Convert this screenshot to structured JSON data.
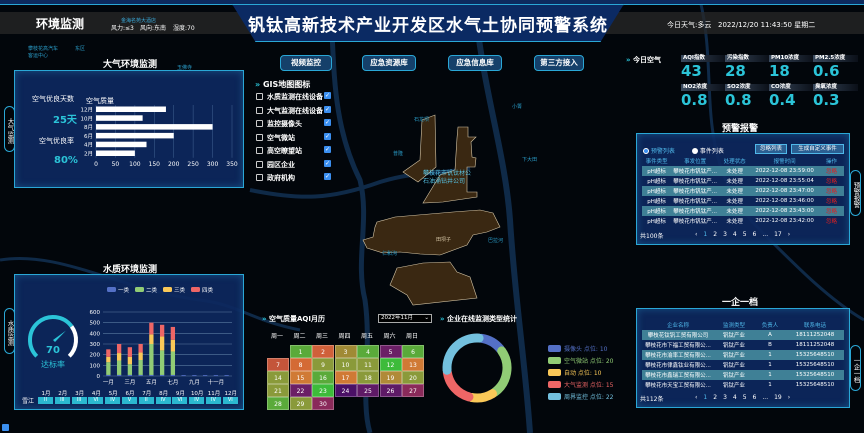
{
  "header": {
    "section": "环境监测",
    "wind_force": "风力:≤3",
    "wind_dir": "风向:东南",
    "humidity": "湿度:70",
    "title": "钒钛高新技术产业开发区水气土协同预警系统",
    "weather": "今日天气:多云",
    "datetime": "2022/12/20 11:43:50 星期二"
  },
  "side_tabs": {
    "air": "大气监测",
    "water": "水质监测",
    "alarm": "预警报警",
    "enterprise": "一企一档"
  },
  "air_panel": {
    "title": "大气环境监测",
    "good_days_label": "空气优良天数",
    "good_days": "25天",
    "good_rate_label": "空气优良率",
    "good_rate": "80%",
    "chart_data": {
      "type": "bar",
      "orientation": "horizontal",
      "title": "空气质量",
      "categories": [
        "12月",
        "10月",
        "8月",
        "6月",
        "4月",
        "2月"
      ],
      "values": [
        180,
        120,
        300,
        200,
        130,
        100
      ],
      "xlim": [
        0,
        350
      ],
      "xticks": [
        0,
        50,
        100,
        150,
        200,
        250,
        300,
        350
      ],
      "bar_color": "#ffffff"
    }
  },
  "water_panel": {
    "title": "水质环境监测",
    "gauge": {
      "value": 70,
      "max": 100,
      "label": "达标率",
      "color": "#2bc4d8"
    },
    "chart_data": {
      "type": "bar",
      "stacked": true,
      "categories": [
        "一月",
        "二月",
        "三月",
        "四月",
        "五月",
        "六月",
        "七月",
        "八月",
        "九月",
        "十月",
        "十一月",
        "十二月"
      ],
      "xtick_labels": [
        "一月",
        "三月",
        "五月",
        "七月",
        "九月",
        "十一月"
      ],
      "ylim": [
        0,
        600
      ],
      "yticks": [
        0,
        100,
        200,
        300,
        400,
        500,
        600
      ],
      "grid": true,
      "legend": "top",
      "series": [
        {
          "name": "一类",
          "color": "#5470c6",
          "values": [
            10,
            10,
            10,
            10,
            10,
            10,
            10,
            8,
            8,
            8,
            8,
            8
          ]
        },
        {
          "name": "二类",
          "color": "#91cc75",
          "values": [
            120,
            135,
            100,
            140,
            290,
            230,
            220,
            0,
            0,
            0,
            0,
            0
          ]
        },
        {
          "name": "三类",
          "color": "#fac858",
          "values": [
            50,
            70,
            70,
            70,
            90,
            130,
            110,
            0,
            0,
            0,
            0,
            0
          ]
        },
        {
          "name": "四类",
          "color": "#ee6666",
          "values": [
            70,
            85,
            90,
            80,
            110,
            110,
            120,
            0,
            0,
            0,
            0,
            0
          ]
        }
      ]
    },
    "river": {
      "name": "雪江",
      "months": [
        "1月",
        "2月",
        "3月",
        "4月",
        "5月",
        "6月",
        "7月",
        "8月",
        "9月",
        "10月",
        "11月",
        "12月"
      ],
      "grades": [
        "II",
        "III",
        "III",
        "VI",
        "IV",
        "V",
        "II",
        "IV",
        "VI",
        "IV",
        "IV",
        "VI"
      ]
    }
  },
  "nav_buttons": [
    "视频监控",
    "应急资源库",
    "应急信息库",
    "第三方接入"
  ],
  "gis": {
    "title": "GIS地图图标",
    "items": [
      "水质监测在线设备",
      "大气监测在线设备",
      "监控摄像头",
      "空气微站",
      "高空瞭望站",
      "园区企业",
      "政府机构"
    ]
  },
  "today_air": {
    "title": "今日空气",
    "items": [
      {
        "label": "AQI指数",
        "value": "43"
      },
      {
        "label": "污染指数",
        "value": "28"
      },
      {
        "label": "PM10浓度",
        "value": "18"
      },
      {
        "label": "PM2.5浓度",
        "value": "0.6"
      },
      {
        "label": "NO2浓度",
        "value": "0.8"
      },
      {
        "label": "SO2浓度",
        "value": "0.8"
      },
      {
        "label": "CO浓度",
        "value": "0.4"
      },
      {
        "label": "臭氧浓度",
        "value": "0.3"
      }
    ]
  },
  "alarm": {
    "title": "预警报警",
    "radio_alarm": "预警列表",
    "radio_event": "事件列表",
    "btn_ignore": "忽略列表",
    "btn_custom": "生成自定义事件",
    "headers": [
      "事件类型",
      "事发位置",
      "处理状态",
      "报警时间",
      "操作"
    ],
    "rows": [
      [
        "pH超标",
        "攀枝花市钒钛产...",
        "未处理",
        "2022-12-08 23:59:00",
        "忽略"
      ],
      [
        "pH超标",
        "攀枝花市钒钛产...",
        "未处理",
        "2022-12-08 23:55:04",
        "忽略"
      ],
      [
        "pH超标",
        "攀枝花市钒钛产...",
        "未处理",
        "2022-12-08 23:47:00",
        "忽略"
      ],
      [
        "pH超标",
        "攀枝花市钒钛产...",
        "未处理",
        "2022-12-08 23:46:00",
        "忽略"
      ],
      [
        "pH超标",
        "攀枝花市钒钛产...",
        "未处理",
        "2022-12-08 23:43:00",
        "忽略"
      ],
      [
        "pH超标",
        "攀枝花市钒钛产...",
        "未处理",
        "2022-12-08 23:42:00",
        "忽略"
      ]
    ],
    "total": "共100条",
    "pages": [
      "1",
      "2",
      "3",
      "4",
      "5",
      "6",
      "...",
      "17"
    ]
  },
  "enterprise": {
    "title": "一企一档",
    "headers": [
      "企业名称",
      "监测类型",
      "负责人",
      "联系电话"
    ],
    "rows": [
      [
        "攀枝花钛钒工贸有限公司",
        "钒钛产业",
        "A",
        "18111252048"
      ],
      [
        "攀枝花市下福工贸有限公...",
        "钒钛产业",
        "B",
        "18111252048"
      ],
      [
        "攀枝花市渝率工贸有限公...",
        "钒钛产业",
        "1",
        "15325648510"
      ],
      [
        "攀枝花市律鑫钛业有限公...",
        "钒钛产业",
        "1",
        "15325648510"
      ],
      [
        "攀枝花市鑫瑞工贸有限公...",
        "钒钛产业",
        "1",
        "15325648510"
      ],
      [
        "攀枝花市天宝工贸有限公...",
        "钒钛产业",
        "1",
        "15325648510"
      ]
    ],
    "total": "共112条",
    "pages": [
      "1",
      "2",
      "3",
      "4",
      "5",
      "6",
      "...",
      "19"
    ]
  },
  "calendar": {
    "title": "空气质量AQI月历",
    "month_select": "2022年11月",
    "weekdays": [
      "周一",
      "周二",
      "周三",
      "周四",
      "周五",
      "周六",
      "周日"
    ],
    "first_weekday": 1,
    "days": [
      {
        "d": "1",
        "c": "#5aaa3a"
      },
      {
        "d": "2",
        "c": "#d0603a"
      },
      {
        "d": "3",
        "c": "#a08a35"
      },
      {
        "d": "4",
        "c": "#5aaa3a"
      },
      {
        "d": "5",
        "c": "#6b1f66"
      },
      {
        "d": "6",
        "c": "#5aaa3a"
      },
      {
        "d": "7",
        "c": "#c4553a"
      },
      {
        "d": "8",
        "c": "#d46a35"
      },
      {
        "d": "9",
        "c": "#8a9a3a"
      },
      {
        "d": "10",
        "c": "#8a9a3a"
      },
      {
        "d": "11",
        "c": "#8a9a3a"
      },
      {
        "d": "12",
        "c": "#3dbb3a"
      },
      {
        "d": "13",
        "c": "#d07a35"
      },
      {
        "d": "14",
        "c": "#8a9a3a"
      },
      {
        "d": "15",
        "c": "#d07a35"
      },
      {
        "d": "16",
        "c": "#5aaa3a"
      },
      {
        "d": "17",
        "c": "#d07a35"
      },
      {
        "d": "18",
        "c": "#8a9a3a"
      },
      {
        "d": "19",
        "c": "#b08a38"
      },
      {
        "d": "20",
        "c": "#8a9a3a"
      },
      {
        "d": "21",
        "c": "#8a9a3a"
      },
      {
        "d": "22",
        "c": "#6b1f66"
      },
      {
        "d": "23",
        "c": "#3dbb3a"
      },
      {
        "d": "24",
        "c": "#4a1066"
      },
      {
        "d": "25",
        "c": "#5e1a66"
      },
      {
        "d": "26",
        "c": "#5e1a66"
      },
      {
        "d": "27",
        "c": "#8a2a5a"
      },
      {
        "d": "28",
        "c": "#5aaa3a"
      },
      {
        "d": "29",
        "c": "#8a9a3a"
      },
      {
        "d": "30",
        "c": "#8a2a5a"
      }
    ]
  },
  "donut": {
    "title": "企业在线监测类型统计",
    "chart_data": {
      "type": "pie",
      "variant": "donut",
      "series": [
        {
          "name": "摄像头 点位: 10",
          "value": 10,
          "color": "#5470c6"
        },
        {
          "name": "空气微站 点位: 20",
          "value": 20,
          "color": "#91cc75"
        },
        {
          "name": "自动 点位: 10",
          "value": 10,
          "color": "#fac858"
        },
        {
          "name": "大气监测 点位: 15",
          "value": 15,
          "color": "#ee6666"
        },
        {
          "name": "周界监控 点位: 22",
          "value": 22,
          "color": "#73c0de"
        }
      ]
    }
  },
  "map_labels": [
    "攀枝花市钒钛材公",
    "石油涌钻井公司",
    "田坝子",
    "仁和沟",
    "石龙坝",
    "下大田",
    "巴拉河",
    "小箐",
    "普隆",
    "东区",
    "攀枝花高汽车客运中心",
    "玉佛寺",
    "金海名苑大酒店",
    "一企一档"
  ]
}
